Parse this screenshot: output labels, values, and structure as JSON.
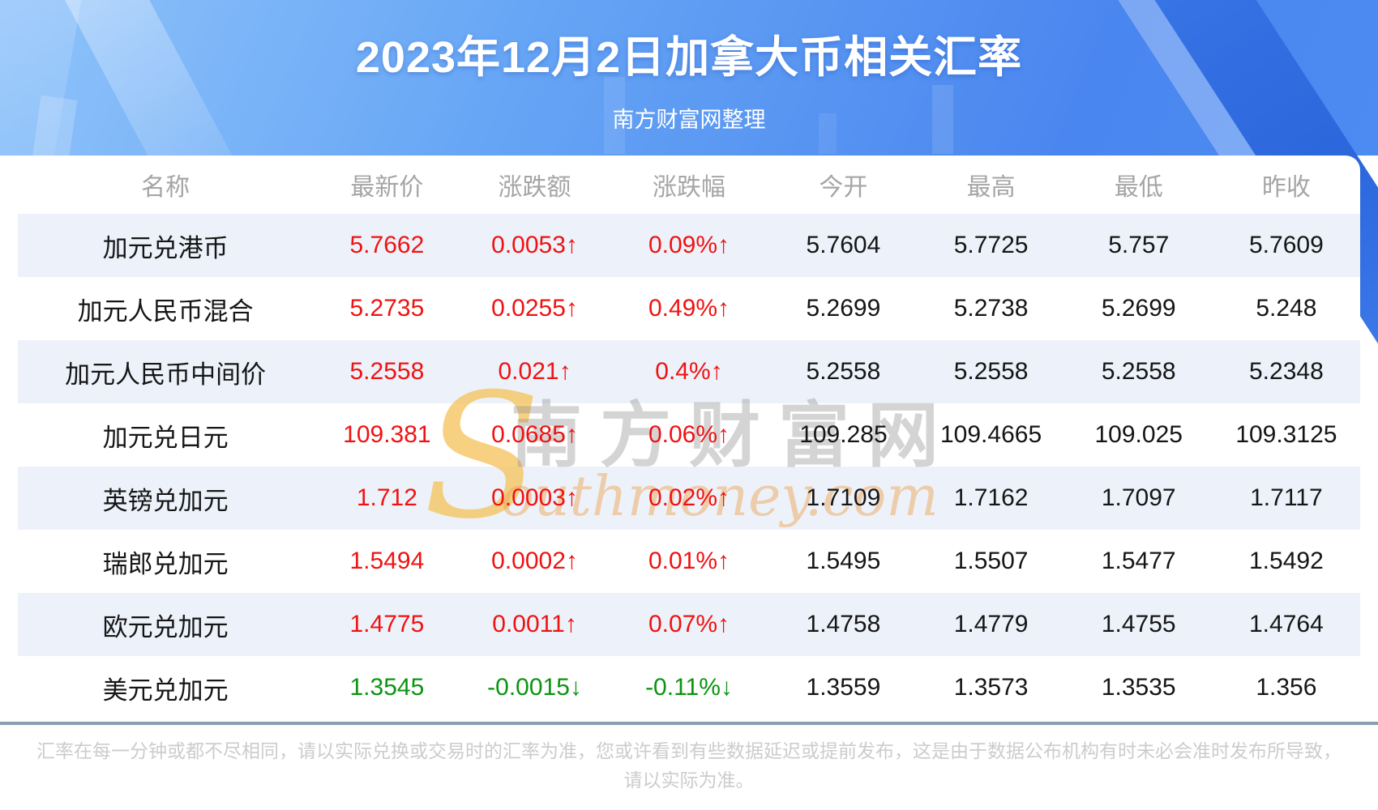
{
  "header": {
    "title": "2023年12月2日加拿大币相关汇率",
    "subtitle": "南方财富网整理"
  },
  "chart_data": {
    "type": "table",
    "title": "2023年12月2日加拿大币相关汇率",
    "columns": [
      "名称",
      "最新价",
      "涨跌额",
      "涨跌幅",
      "今开",
      "最高",
      "最低",
      "昨收"
    ],
    "rows": [
      {
        "name": "加元兑港币",
        "latest": "5.7662",
        "change": "0.0053↑",
        "pct": "0.09%↑",
        "open": "5.7604",
        "high": "5.7725",
        "low": "5.757",
        "prev": "5.7609",
        "dir": "up"
      },
      {
        "name": "加元人民币混合",
        "latest": "5.2735",
        "change": "0.0255↑",
        "pct": "0.49%↑",
        "open": "5.2699",
        "high": "5.2738",
        "low": "5.2699",
        "prev": "5.248",
        "dir": "up"
      },
      {
        "name": "加元人民币中间价",
        "latest": "5.2558",
        "change": "0.021↑",
        "pct": "0.4%↑",
        "open": "5.2558",
        "high": "5.2558",
        "low": "5.2558",
        "prev": "5.2348",
        "dir": "up"
      },
      {
        "name": "加元兑日元",
        "latest": "109.381",
        "change": "0.0685↑",
        "pct": "0.06%↑",
        "open": "109.285",
        "high": "109.4665",
        "low": "109.025",
        "prev": "109.3125",
        "dir": "up"
      },
      {
        "name": "英镑兑加元",
        "latest": "1.712",
        "change": "0.0003↑",
        "pct": "0.02%↑",
        "open": "1.7109",
        "high": "1.7162",
        "low": "1.7097",
        "prev": "1.7117",
        "dir": "up"
      },
      {
        "name": "瑞郎兑加元",
        "latest": "1.5494",
        "change": "0.0002↑",
        "pct": "0.01%↑",
        "open": "1.5495",
        "high": "1.5507",
        "low": "1.5477",
        "prev": "1.5492",
        "dir": "up"
      },
      {
        "name": "欧元兑加元",
        "latest": "1.4775",
        "change": "0.0011↑",
        "pct": "0.07%↑",
        "open": "1.4758",
        "high": "1.4779",
        "low": "1.4755",
        "prev": "1.4764",
        "dir": "up"
      },
      {
        "name": "美元兑加元",
        "latest": "1.3545",
        "change": "-0.0015↓",
        "pct": "-0.11%↓",
        "open": "1.3559",
        "high": "1.3573",
        "low": "1.3535",
        "prev": "1.356",
        "dir": "down"
      }
    ]
  },
  "watermark": {
    "s": "S",
    "cn": "南方财富网",
    "en": "outhmoney.com"
  },
  "footer": {
    "lines": [
      "汇率在每一分钟或都不尽相同，请以实际兑换或交易时的汇率为准，您或许看到有些数据延迟或提前发布，这是由于数据公布机构有时未必会准时发布所导致，",
      "请以实际为准。"
    ]
  },
  "colors": {
    "up": "#f01212",
    "down": "#0b9410",
    "stripe": "#edf2fa",
    "divider": "#8a9db1",
    "banner_accent": "#2f6ee2"
  }
}
